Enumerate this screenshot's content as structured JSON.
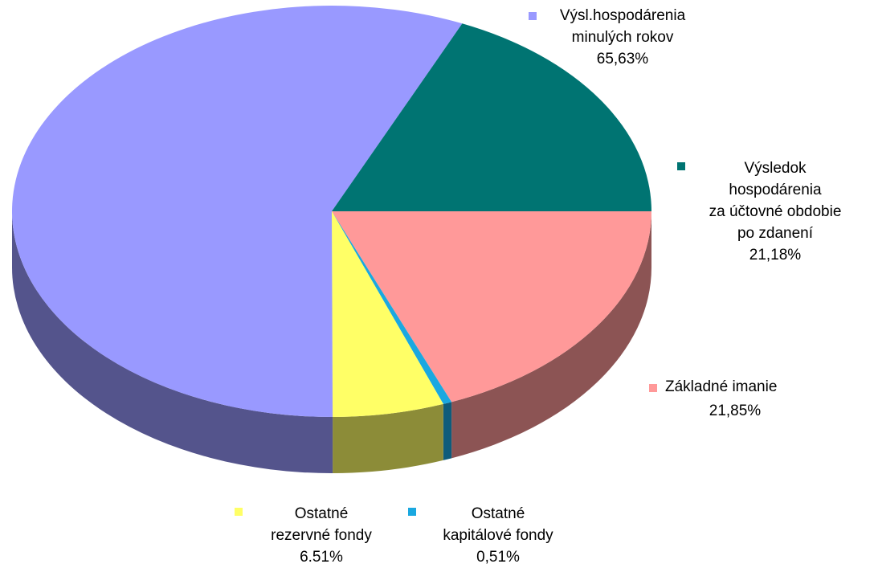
{
  "chart_data": {
    "type": "pie3d",
    "categories": [
      "Základné imanie",
      "Ostatné\nkapitálové fondy",
      "Ostatné\nrezervné fondy",
      "Výsl.hospodárenia\nminulých rokov",
      "Výsledok\nhospodárenia\nza účtovné obdobie\npo zdanení"
    ],
    "values": [
      21.85,
      0.51,
      6.51,
      65.63,
      21.18
    ],
    "value_labels": [
      "21,85%",
      "0,51%",
      "6.51%",
      "65,63%",
      "21,18%"
    ],
    "colors": [
      "#ff9999",
      "#1aa8e0",
      "#ffff66",
      "#9999ff",
      "#007472"
    ]
  }
}
